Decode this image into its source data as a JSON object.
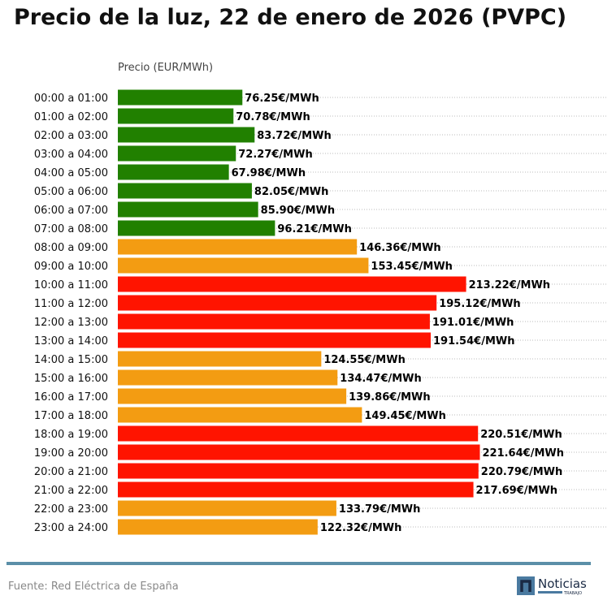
{
  "title": "Precio de la luz, 22 de enero de 2026 (PVPC)",
  "source": "Fuente: Red Eléctrica de España",
  "logo": {
    "text": "Noticias",
    "subtext": "TRABAJO"
  },
  "chart_data": {
    "type": "bar",
    "orientation": "horizontal",
    "title": "Precio de la luz, 22 de enero de 2026 (PVPC)",
    "xlabel": "Precio (EUR/MWh)",
    "xlim": [
      0,
      300
    ],
    "grid": "horizontal dotted",
    "label_suffix": "€/MWh",
    "colors": {
      "low": "#218000",
      "mid": "#f39c12",
      "high": "#ff1400"
    },
    "categories": [
      "00:00 a 01:00",
      "01:00 a 02:00",
      "02:00 a 03:00",
      "03:00 a 04:00",
      "04:00 a 05:00",
      "05:00 a 06:00",
      "06:00 a 07:00",
      "07:00 a 08:00",
      "08:00 a 09:00",
      "09:00 a 10:00",
      "10:00 a 11:00",
      "11:00 a 12:00",
      "12:00 a 13:00",
      "13:00 a 14:00",
      "14:00 a 15:00",
      "15:00 a 16:00",
      "16:00 a 17:00",
      "17:00 a 18:00",
      "18:00 a 19:00",
      "19:00 a 20:00",
      "20:00 a 21:00",
      "21:00 a 22:00",
      "22:00 a 23:00",
      "23:00 a 24:00"
    ],
    "values": [
      76.25,
      70.78,
      83.72,
      72.27,
      67.98,
      82.05,
      85.9,
      96.21,
      146.36,
      153.45,
      213.22,
      195.12,
      191.01,
      191.54,
      124.55,
      134.47,
      139.86,
      149.45,
      220.51,
      221.64,
      220.79,
      217.69,
      133.79,
      122.32
    ],
    "levels": [
      "low",
      "low",
      "low",
      "low",
      "low",
      "low",
      "low",
      "low",
      "mid",
      "mid",
      "high",
      "high",
      "high",
      "high",
      "mid",
      "mid",
      "mid",
      "mid",
      "high",
      "high",
      "high",
      "high",
      "mid",
      "mid"
    ]
  }
}
